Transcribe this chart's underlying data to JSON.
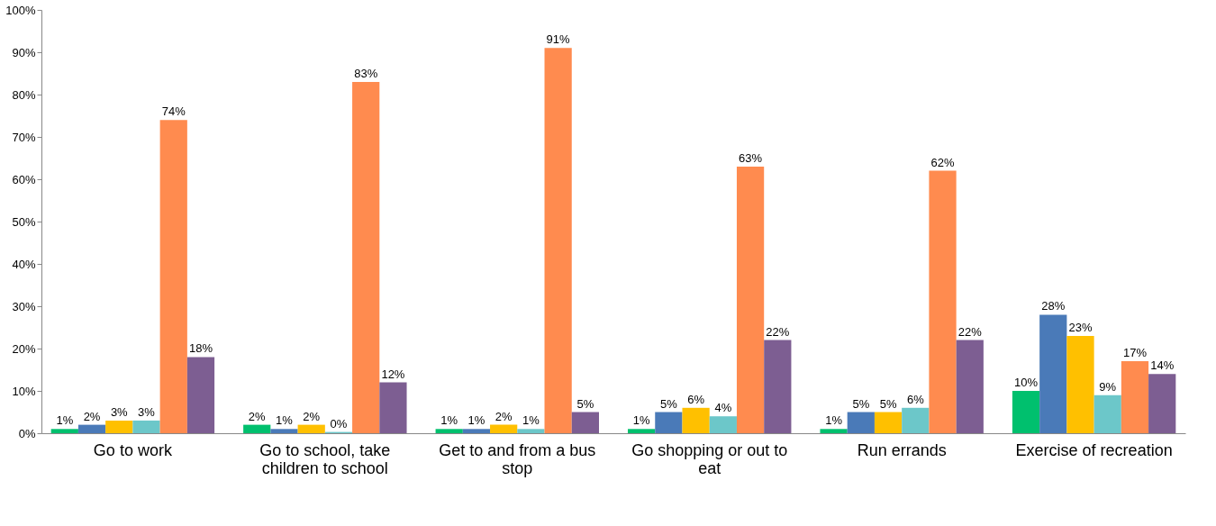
{
  "chart_data": {
    "type": "bar",
    "categories": [
      "Go to work",
      "Go to school, take children to school",
      "Get to and from a bus stop",
      "Go shopping or out to eat",
      "Run errands",
      "Exercise of recreation"
    ],
    "series": [
      {
        "color": "#00c06e",
        "values": [
          1,
          2,
          1,
          1,
          1,
          10
        ],
        "value_labels": [
          "1%",
          "2%",
          "1%",
          "1%",
          "1%",
          "10%"
        ]
      },
      {
        "color": "#4a7ab8",
        "values": [
          2,
          1,
          1,
          5,
          5,
          28
        ],
        "value_labels": [
          "2%",
          "1%",
          "1%",
          "5%",
          "5%",
          "28%"
        ]
      },
      {
        "color": "#ffc000",
        "values": [
          3,
          2,
          2,
          6,
          5,
          23
        ],
        "value_labels": [
          "3%",
          "2%",
          "2%",
          "6%",
          "5%",
          "23%"
        ]
      },
      {
        "color": "#6cc7c9",
        "values": [
          3,
          0.3,
          1,
          4,
          6,
          9
        ],
        "value_labels": [
          "3%",
          "0%",
          "1%",
          "4%",
          "6%",
          "9%"
        ]
      },
      {
        "color": "#ff8b4f",
        "values": [
          74,
          83,
          91,
          63,
          62,
          17
        ],
        "value_labels": [
          "74%",
          "83%",
          "91%",
          "63%",
          "62%",
          "17%"
        ]
      },
      {
        "color": "#7d5e92",
        "values": [
          18,
          12,
          5,
          22,
          22,
          14
        ],
        "value_labels": [
          "18%",
          "12%",
          "5%",
          "22%",
          "22%",
          "14%"
        ]
      }
    ],
    "ylim": [
      0,
      100
    ],
    "yticks": [
      {
        "value": 0,
        "label": "0%"
      },
      {
        "value": 10,
        "label": "10%"
      },
      {
        "value": 20,
        "label": "20%"
      },
      {
        "value": 30,
        "label": "30%"
      },
      {
        "value": 40,
        "label": "40%"
      },
      {
        "value": 50,
        "label": "50%"
      },
      {
        "value": 60,
        "label": "60%"
      },
      {
        "value": 70,
        "label": "70%"
      },
      {
        "value": 80,
        "label": "80%"
      },
      {
        "value": 90,
        "label": "90%"
      },
      {
        "value": 100,
        "label": "100%"
      }
    ],
    "grid": false,
    "legend": false
  }
}
